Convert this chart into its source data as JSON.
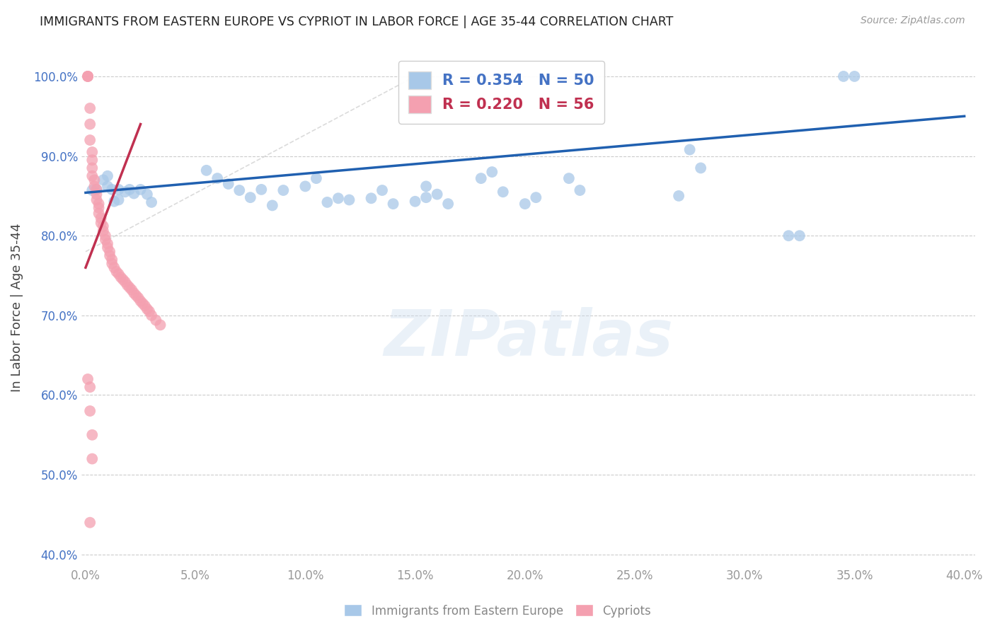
{
  "title": "IMMIGRANTS FROM EASTERN EUROPE VS CYPRIOT IN LABOR FORCE | AGE 35-44 CORRELATION CHART",
  "source": "Source: ZipAtlas.com",
  "ylabel": "In Labor Force | Age 35-44",
  "xlim": [
    -0.002,
    0.405
  ],
  "ylim": [
    0.385,
    1.035
  ],
  "yticks": [
    0.4,
    0.5,
    0.6,
    0.7,
    0.8,
    0.9,
    1.0
  ],
  "ytick_labels": [
    "40.0%",
    "50.0%",
    "60.0%",
    "70.0%",
    "80.0%",
    "90.0%",
    "100.0%"
  ],
  "xticks": [
    0.0,
    0.05,
    0.1,
    0.15,
    0.2,
    0.25,
    0.3,
    0.35,
    0.4
  ],
  "xtick_labels": [
    "0.0%",
    "5.0%",
    "10.0%",
    "15.0%",
    "20.0%",
    "25.0%",
    "30.0%",
    "35.0%",
    "40.0%"
  ],
  "blue_R": 0.354,
  "blue_N": 50,
  "pink_R": 0.22,
  "pink_N": 56,
  "blue_color": "#a8c8e8",
  "pink_color": "#f4a0b0",
  "blue_line_color": "#2060b0",
  "pink_line_color": "#c03050",
  "watermark": "ZIPatlas",
  "blue_points_x": [
    0.003,
    0.005,
    0.008,
    0.01,
    0.01,
    0.012,
    0.013,
    0.015,
    0.015,
    0.018,
    0.02,
    0.022,
    0.025,
    0.028,
    0.03,
    0.055,
    0.06,
    0.065,
    0.07,
    0.075,
    0.08,
    0.085,
    0.09,
    0.1,
    0.105,
    0.11,
    0.115,
    0.12,
    0.13,
    0.135,
    0.14,
    0.15,
    0.155,
    0.155,
    0.16,
    0.165,
    0.18,
    0.185,
    0.19,
    0.2,
    0.205,
    0.22,
    0.225,
    0.27,
    0.275,
    0.28,
    0.32,
    0.325,
    0.345,
    0.35
  ],
  "blue_points_y": [
    0.857,
    0.858,
    0.87,
    0.862,
    0.875,
    0.858,
    0.843,
    0.858,
    0.845,
    0.855,
    0.858,
    0.853,
    0.858,
    0.852,
    0.842,
    0.882,
    0.872,
    0.865,
    0.857,
    0.848,
    0.858,
    0.838,
    0.857,
    0.862,
    0.872,
    0.842,
    0.847,
    0.845,
    0.847,
    0.857,
    0.84,
    0.843,
    0.848,
    0.862,
    0.852,
    0.84,
    0.872,
    0.88,
    0.855,
    0.84,
    0.848,
    0.872,
    0.857,
    0.85,
    0.908,
    0.885,
    0.8,
    0.8,
    1.0,
    1.0
  ],
  "pink_points_x": [
    0.001,
    0.001,
    0.001,
    0.002,
    0.002,
    0.002,
    0.003,
    0.003,
    0.003,
    0.003,
    0.004,
    0.004,
    0.005,
    0.005,
    0.005,
    0.006,
    0.006,
    0.006,
    0.007,
    0.007,
    0.008,
    0.008,
    0.009,
    0.009,
    0.01,
    0.01,
    0.011,
    0.011,
    0.012,
    0.012,
    0.013,
    0.014,
    0.015,
    0.016,
    0.017,
    0.018,
    0.019,
    0.02,
    0.021,
    0.022,
    0.023,
    0.024,
    0.025,
    0.026,
    0.027,
    0.028,
    0.029,
    0.03,
    0.032,
    0.034,
    0.001,
    0.002,
    0.002,
    0.003,
    0.003,
    0.002
  ],
  "pink_points_y": [
    1.0,
    1.0,
    1.0,
    0.96,
    0.94,
    0.92,
    0.905,
    0.895,
    0.885,
    0.875,
    0.87,
    0.862,
    0.858,
    0.852,
    0.845,
    0.84,
    0.835,
    0.828,
    0.822,
    0.816,
    0.812,
    0.806,
    0.8,
    0.795,
    0.79,
    0.785,
    0.78,
    0.775,
    0.77,
    0.765,
    0.76,
    0.755,
    0.752,
    0.748,
    0.745,
    0.742,
    0.738,
    0.735,
    0.732,
    0.728,
    0.725,
    0.722,
    0.718,
    0.715,
    0.712,
    0.708,
    0.705,
    0.7,
    0.694,
    0.688,
    0.62,
    0.61,
    0.58,
    0.55,
    0.52,
    0.44
  ],
  "pink_line_x0": 0.0,
  "pink_line_y0": 0.76,
  "pink_line_x1": 0.025,
  "pink_line_y1": 0.94,
  "blue_line_x0": 0.0,
  "blue_line_y0": 0.854,
  "blue_line_x1": 0.4,
  "blue_line_y1": 0.95
}
